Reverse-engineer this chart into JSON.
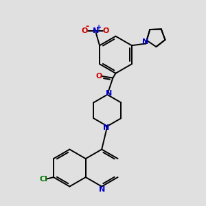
{
  "bg_color": "#e0e0e0",
  "bond_color": "#000000",
  "N_color": "#0000cc",
  "O_color": "#cc0000",
  "Cl_color": "#007700",
  "lw": 1.4,
  "figsize": [
    3.0,
    3.0
  ],
  "dpi": 100,
  "xlim": [
    -1.5,
    8.5
  ],
  "ylim": [
    -0.5,
    10.5
  ]
}
